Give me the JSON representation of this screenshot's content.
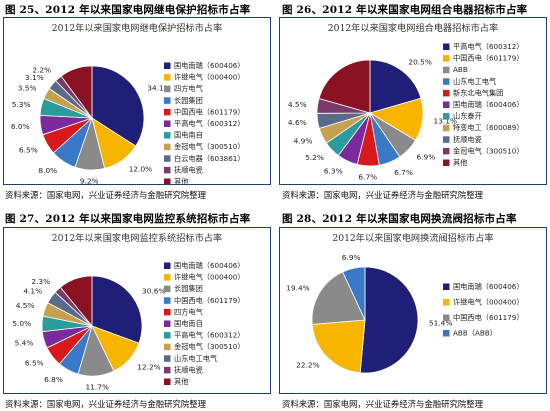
{
  "figures": [
    {
      "title": "图 25、2012 年以来国家电网继电保护招标市占率",
      "source": "资料来源：国家电网，兴业证券经济与金融研究院整理"
    },
    {
      "title": "图 26、2012 年以来国家电网组合电器招标市占率",
      "source": "资料来源：国家电网，兴业证券经济与金融研究院整理"
    },
    {
      "title": "图 27、2012 年以来国家电网监控系统招标市占率",
      "source": "资料来源：国家电网，兴业证券经济与金融研究院整理"
    },
    {
      "title": "图 28、2012 年以来国家电网换流阀招标市占率",
      "source": "资料来源：国家电网，兴业证券经济与金融研究院整理"
    }
  ],
  "colors": {
    "navy": "#1f1f78",
    "gold": "#f7b500",
    "gray": "#8a8a8a",
    "blue": "#3a78c8",
    "red": "#d7191c",
    "purple": "#7a2a9c",
    "teal": "#2a9c9c",
    "tan": "#c4a050",
    "steel": "#5a6a8a",
    "mauve": "#7a3a6a",
    "maroon": "#8a1222",
    "panel_border": "#1f3f73"
  },
  "chart_data": [
    {
      "type": "pie",
      "title": "2012年以来国家电网继电保护招标市占率",
      "slices": [
        {
          "label": "国电南瑞（600406）",
          "value": 34.1,
          "pct_label": "34.1%",
          "color": "#1f1f78"
        },
        {
          "label": "许继电气（000400）",
          "value": 12.0,
          "pct_label": "12.0%",
          "color": "#f7b500"
        },
        {
          "label": "四方电气",
          "value": 9.2,
          "pct_label": "9.2%",
          "color": "#8a8a8a"
        },
        {
          "label": "长园集团",
          "value": 8.0,
          "pct_label": "8.0%",
          "color": "#3a78c8"
        },
        {
          "label": "中国西电（601179）",
          "value": 6.5,
          "pct_label": "6.5%",
          "color": "#d7191c"
        },
        {
          "label": "平高电气（600312）",
          "value": 6.0,
          "pct_label": "6.0%",
          "color": "#7a2a9c"
        },
        {
          "label": "国电南自",
          "value": 5.3,
          "pct_label": "5.3%",
          "color": "#2a9c9c"
        },
        {
          "label": "金冠电气（300510）",
          "value": 3.5,
          "pct_label": "3.5%",
          "color": "#c4a050"
        },
        {
          "label": "白云电器（603861）",
          "value": 3.1,
          "pct_label": "3.1%",
          "color": "#5a6a8a"
        },
        {
          "label": "抚顺电瓷",
          "value": 2.2,
          "pct_label": "2.2%",
          "color": "#7a3a6a"
        },
        {
          "label": "其他",
          "value": 10.1,
          "pct_label": "",
          "color": "#8a1222"
        }
      ]
    },
    {
      "type": "pie",
      "title": "2012年以来国家电网组合电器招标市占率",
      "slices": [
        {
          "label": "平高电气（600312）",
          "value": 20.5,
          "pct_label": "20.5%",
          "color": "#1f1f78"
        },
        {
          "label": "中国西电（601179）",
          "value": 13.1,
          "pct_label": "13.1%",
          "color": "#f7b500"
        },
        {
          "label": "ABB",
          "value": 6.9,
          "pct_label": "6.9%",
          "color": "#8a8a8a"
        },
        {
          "label": "山东电工电气",
          "value": 6.7,
          "pct_label": "6.7%",
          "color": "#3a78c8"
        },
        {
          "label": "新东北电气集团",
          "value": 6.7,
          "pct_label": "6.7%",
          "color": "#d7191c"
        },
        {
          "label": "国电南瑞（600406）",
          "value": 6.3,
          "pct_label": "6.3%",
          "color": "#7a2a9c"
        },
        {
          "label": "山东泰开",
          "value": 5.2,
          "pct_label": "5.2%",
          "color": "#2a9c9c"
        },
        {
          "label": "特变电工（600089）",
          "value": 4.9,
          "pct_label": "4.9%",
          "color": "#c4a050"
        },
        {
          "label": "抚顺电瓷",
          "value": 4.6,
          "pct_label": "4.6%",
          "color": "#5a6a8a"
        },
        {
          "label": "金冠电气（300510）",
          "value": 4.5,
          "pct_label": "4.5%",
          "color": "#7a3a6a"
        },
        {
          "label": "其他",
          "value": 20.6,
          "pct_label": "",
          "color": "#8a1222"
        }
      ]
    },
    {
      "type": "pie",
      "title": "2012年以来国家电网监控系统招标市占率",
      "slices": [
        {
          "label": "国电南瑞（600406）",
          "value": 30.6,
          "pct_label": "30.6%",
          "color": "#1f1f78"
        },
        {
          "label": "许继电气（000400）",
          "value": 12.2,
          "pct_label": "12.2%",
          "color": "#f7b500"
        },
        {
          "label": "长园集团",
          "value": 11.7,
          "pct_label": "11.7%",
          "color": "#8a8a8a"
        },
        {
          "label": "中国西电（601179）",
          "value": 6.8,
          "pct_label": "6.8%",
          "color": "#3a78c8"
        },
        {
          "label": "四方电气",
          "value": 6.5,
          "pct_label": "6.5%",
          "color": "#d7191c"
        },
        {
          "label": "国电南自",
          "value": 5.4,
          "pct_label": "5.4%",
          "color": "#7a2a9c"
        },
        {
          "label": "平高电气（600312）",
          "value": 5.0,
          "pct_label": "5.0%",
          "color": "#2a9c9c"
        },
        {
          "label": "金冠电气（300510）",
          "value": 4.5,
          "pct_label": "4.5%",
          "color": "#c4a050"
        },
        {
          "label": "山东电工电气",
          "value": 4.1,
          "pct_label": "4.1%",
          "color": "#5a6a8a"
        },
        {
          "label": "抚顺电瓷",
          "value": 2.3,
          "pct_label": "2.3%",
          "color": "#7a3a6a"
        },
        {
          "label": "其他",
          "value": 10.9,
          "pct_label": "",
          "color": "#8a1222"
        }
      ]
    },
    {
      "type": "pie",
      "title": "2012年以来国家电网换流阀招标市占率",
      "slices": [
        {
          "label": "国电南瑞（600406）",
          "value": 51.4,
          "pct_label": "51.4%",
          "color": "#1f1f78"
        },
        {
          "label": "许继电气（000400）",
          "value": 22.2,
          "pct_label": "22.2%",
          "color": "#f7b500"
        },
        {
          "label": "中国西电（601179）",
          "value": 19.4,
          "pct_label": "19.4%",
          "color": "#8a8a8a"
        },
        {
          "label": "ABB（ABB）",
          "value": 6.9,
          "pct_label": "6.9%",
          "color": "#3a78c8"
        }
      ]
    }
  ]
}
